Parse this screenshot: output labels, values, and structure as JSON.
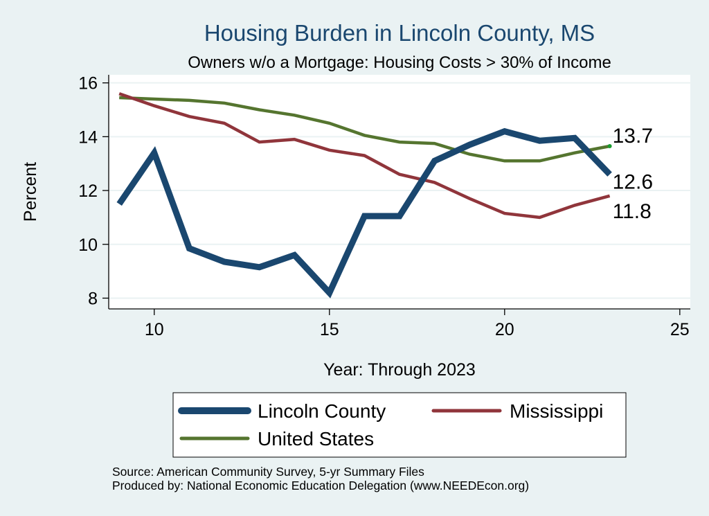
{
  "chart_data": {
    "type": "line",
    "title": "Housing Burden in Lincoln County, MS",
    "subtitle": "Owners w/o a Mortgage: Housing Costs > 30% of Income",
    "xlabel": "Year: Through 2023",
    "ylabel": "Percent",
    "xlim": [
      8.7,
      25.3
    ],
    "ylim": [
      7.6,
      16.3
    ],
    "xticks": [
      10,
      15,
      20,
      25
    ],
    "yticks": [
      8,
      10,
      12,
      14,
      16
    ],
    "grid": true,
    "legend_position": "bottom",
    "x": [
      9,
      10,
      11,
      12,
      13,
      14,
      15,
      16,
      17,
      18,
      19,
      20,
      21,
      22,
      23
    ],
    "series": [
      {
        "name": "Lincoln County",
        "color": "#1a476f",
        "values": [
          11.5,
          13.4,
          9.85,
          9.35,
          9.15,
          9.6,
          8.2,
          11.05,
          11.05,
          13.1,
          13.7,
          14.2,
          13.85,
          13.95,
          12.6
        ],
        "end_label": "12.6"
      },
      {
        "name": "Mississippi",
        "color": "#90353b",
        "values": [
          15.6,
          15.15,
          14.75,
          14.5,
          13.8,
          13.9,
          13.5,
          13.3,
          12.6,
          12.3,
          11.7,
          11.15,
          11.0,
          11.45,
          11.8
        ],
        "end_label": "11.8"
      },
      {
        "name": "United States",
        "color": "#55752f",
        "values": [
          15.45,
          15.4,
          15.35,
          15.25,
          15.0,
          14.8,
          14.5,
          14.05,
          13.8,
          13.75,
          13.35,
          13.1,
          13.1,
          13.4,
          13.65
        ],
        "end_label": "13.7"
      }
    ]
  },
  "source_note": "Source: American Community Survey, 5-yr Summary Files",
  "produced_note": "Produced by: National Economic Education Delegation (www.NEEDEcon.org)"
}
